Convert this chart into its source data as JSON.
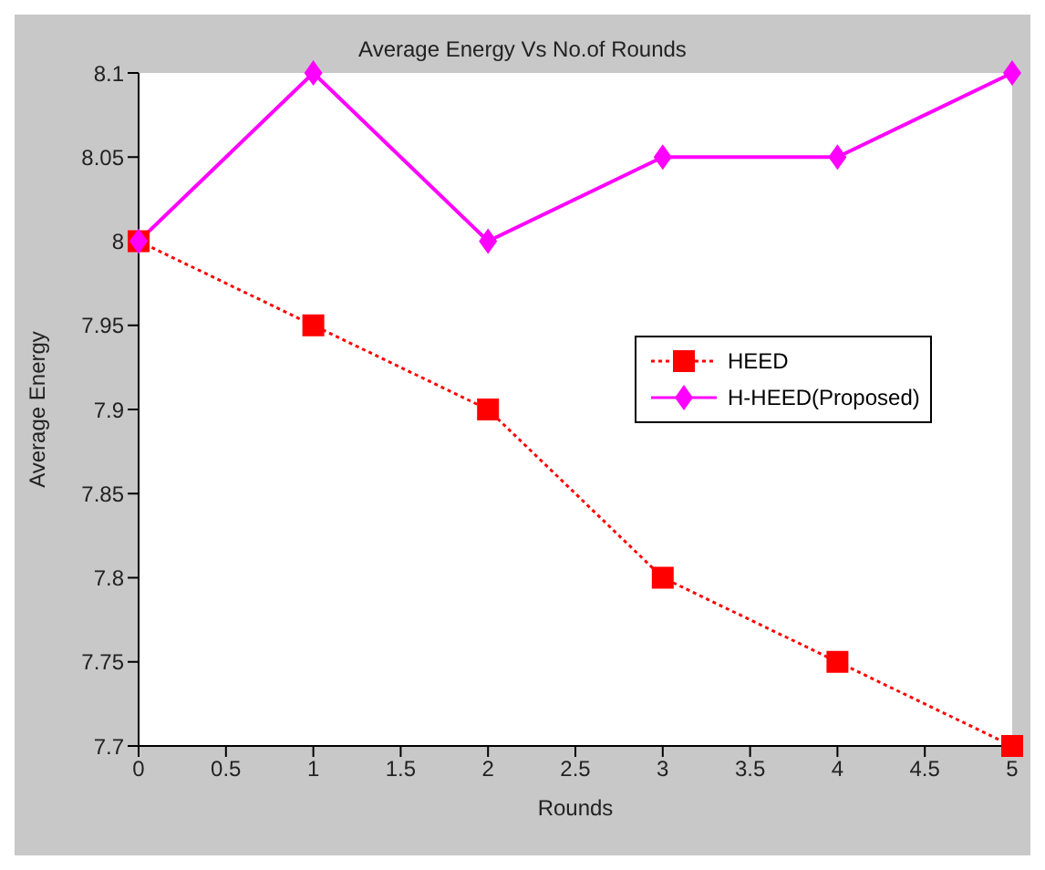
{
  "chart_data": {
    "type": "line",
    "title": "Average Energy Vs No.of Rounds",
    "xlabel": "Rounds",
    "ylabel": "Average Energy",
    "x": [
      0,
      1,
      2,
      3,
      4,
      5
    ],
    "series": [
      {
        "name": "HEED",
        "color": "#ff0000",
        "values": [
          8,
          7.95,
          7.9,
          7.8,
          7.75,
          7.7
        ],
        "marker": "square",
        "line_style": "dotted"
      },
      {
        "name": "H-HEED(Proposed)",
        "color": "#ff00ff",
        "values": [
          8,
          8.1,
          8,
          8.05,
          8.05,
          8.1
        ],
        "marker": "diamond",
        "line_style": "solid"
      }
    ],
    "xlim": [
      0,
      5
    ],
    "xticks": [
      0,
      0.5,
      1,
      1.5,
      2,
      2.5,
      3,
      3.5,
      4,
      4.5,
      5
    ],
    "ylim": [
      7.7,
      8.1
    ],
    "yticks": [
      7.7,
      7.75,
      7.8,
      7.85,
      7.9,
      7.95,
      8,
      8.05,
      8.1
    ],
    "legend": "right"
  }
}
